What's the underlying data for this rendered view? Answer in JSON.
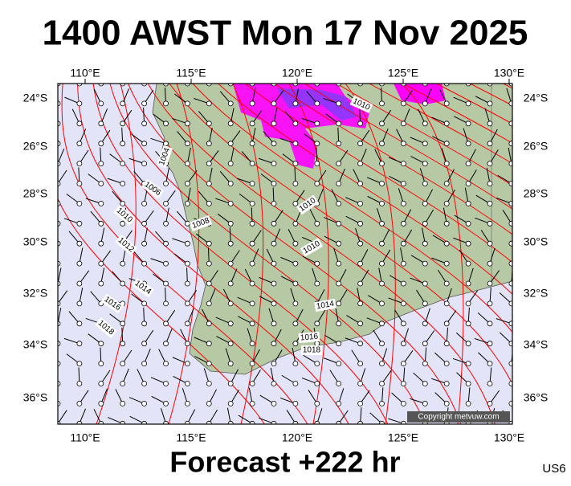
{
  "header": {
    "title": "1400 AWST Mon 17 Nov 2025"
  },
  "map": {
    "lon_labels": [
      "110°E",
      "115°E",
      "120°E",
      "125°E",
      "130°E"
    ],
    "lat_labels": [
      "24°S",
      "26°S",
      "28°S",
      "30°S",
      "32°S",
      "34°S",
      "36°S"
    ],
    "isobar_labels": [
      "1010",
      "1004",
      "1006",
      "1008",
      "1010",
      "1010",
      "1010",
      "1012",
      "1014",
      "1014",
      "1016",
      "1016",
      "1018",
      "1018"
    ],
    "copyright": "Copyright metvuw.com"
  },
  "footer": {
    "forecast": "Forecast +222 hr",
    "code": "US6"
  }
}
